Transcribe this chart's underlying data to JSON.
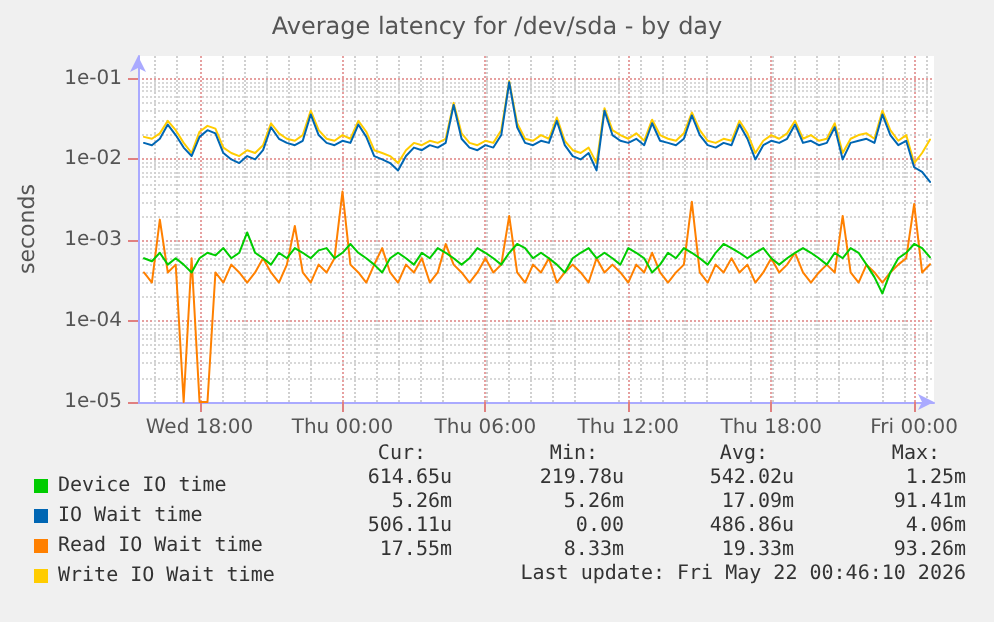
{
  "chart_data": {
    "type": "line",
    "title": "Average latency for /dev/sda - by day",
    "ylabel": "seconds",
    "x": [
      "2026-05-20T15:40",
      "2026-05-20T16:00",
      "2026-05-20T16:20",
      "2026-05-20T16:40",
      "2026-05-20T17:00",
      "2026-05-20T17:20",
      "2026-05-20T17:40",
      "2026-05-20T18:00",
      "2026-05-20T18:20",
      "2026-05-20T18:40",
      "2026-05-20T19:00",
      "2026-05-20T19:20",
      "2026-05-20T19:40",
      "2026-05-20T20:00",
      "2026-05-20T20:20",
      "2026-05-20T20:40",
      "2026-05-20T21:00",
      "2026-05-20T21:20",
      "2026-05-20T21:40",
      "2026-05-20T22:00",
      "2026-05-20T22:20",
      "2026-05-20T22:40",
      "2026-05-20T23:00",
      "2026-05-20T23:20",
      "2026-05-20T23:40",
      "2026-05-21T00:00",
      "2026-05-21T00:20",
      "2026-05-21T00:40",
      "2026-05-21T01:00",
      "2026-05-21T01:20",
      "2026-05-21T01:40",
      "2026-05-21T02:00",
      "2026-05-21T02:20",
      "2026-05-21T02:40",
      "2026-05-21T03:00",
      "2026-05-21T03:20",
      "2026-05-21T03:40",
      "2026-05-21T04:00",
      "2026-05-21T04:20",
      "2026-05-21T04:40",
      "2026-05-21T05:00",
      "2026-05-21T05:20",
      "2026-05-21T05:40",
      "2026-05-21T06:00",
      "2026-05-21T06:20",
      "2026-05-21T06:40",
      "2026-05-21T07:00",
      "2026-05-21T07:20",
      "2026-05-21T07:40",
      "2026-05-21T08:00",
      "2026-05-21T08:20",
      "2026-05-21T08:40",
      "2026-05-21T09:00",
      "2026-05-21T09:20",
      "2026-05-21T09:40",
      "2026-05-21T10:00",
      "2026-05-21T10:20",
      "2026-05-21T10:40",
      "2026-05-21T11:00",
      "2026-05-21T11:20",
      "2026-05-21T11:40",
      "2026-05-21T12:00",
      "2026-05-21T12:20",
      "2026-05-21T12:40",
      "2026-05-21T13:00",
      "2026-05-21T13:20",
      "2026-05-21T13:40",
      "2026-05-21T14:00",
      "2026-05-21T14:20",
      "2026-05-21T14:40",
      "2026-05-21T15:00",
      "2026-05-21T15:20",
      "2026-05-21T15:40",
      "2026-05-21T16:00",
      "2026-05-21T16:20",
      "2026-05-21T16:40",
      "2026-05-21T17:00",
      "2026-05-21T17:20",
      "2026-05-21T17:40",
      "2026-05-21T18:00",
      "2026-05-21T18:20",
      "2026-05-21T18:40",
      "2026-05-21T19:00",
      "2026-05-21T19:20",
      "2026-05-21T19:40",
      "2026-05-21T20:00",
      "2026-05-21T20:20",
      "2026-05-21T20:40",
      "2026-05-21T21:00",
      "2026-05-21T21:20",
      "2026-05-21T21:40",
      "2026-05-21T22:00",
      "2026-05-21T22:20",
      "2026-05-21T22:40",
      "2026-05-21T23:00",
      "2026-05-21T23:20",
      "2026-05-21T23:40",
      "2026-05-22T00:00",
      "2026-05-22T00:20",
      "2026-05-22T00:40"
    ],
    "series": [
      {
        "name": "Device IO time",
        "color": "#00cc00",
        "values": [
          0.0006,
          0.00055,
          0.0007,
          0.0005,
          0.0006,
          0.0005,
          0.0004,
          0.0006,
          0.0007,
          0.00065,
          0.0008,
          0.0006,
          0.0007,
          0.00125,
          0.0007,
          0.0006,
          0.0005,
          0.0007,
          0.0006,
          0.0008,
          0.0007,
          0.0006,
          0.00075,
          0.0008,
          0.0006,
          0.0007,
          0.0009,
          0.0007,
          0.0006,
          0.0005,
          0.0004,
          0.0006,
          0.0007,
          0.0006,
          0.0005,
          0.0007,
          0.0006,
          0.0008,
          0.0007,
          0.0006,
          0.0005,
          0.0006,
          0.0008,
          0.0007,
          0.0006,
          0.0005,
          0.0007,
          0.0009,
          0.0008,
          0.0006,
          0.0007,
          0.0006,
          0.0005,
          0.0004,
          0.0006,
          0.0007,
          0.0008,
          0.0006,
          0.0007,
          0.0006,
          0.0005,
          0.0008,
          0.0007,
          0.0006,
          0.0004,
          0.0005,
          0.0007,
          0.0006,
          0.0008,
          0.0007,
          0.0006,
          0.0005,
          0.0007,
          0.0009,
          0.0008,
          0.0007,
          0.0006,
          0.0007,
          0.0008,
          0.0006,
          0.0005,
          0.0006,
          0.0007,
          0.0008,
          0.0007,
          0.0006,
          0.0005,
          0.0007,
          0.0006,
          0.0008,
          0.0007,
          0.0005,
          0.00035,
          0.00022,
          0.0004,
          0.0006,
          0.0007,
          0.0009,
          0.0008,
          0.000615
        ]
      },
      {
        "name": "IO Wait time",
        "color": "#0066b3",
        "values": [
          0.016,
          0.015,
          0.018,
          0.027,
          0.02,
          0.014,
          0.011,
          0.019,
          0.023,
          0.021,
          0.012,
          0.01,
          0.009,
          0.011,
          0.01,
          0.013,
          0.025,
          0.018,
          0.016,
          0.015,
          0.017,
          0.036,
          0.02,
          0.016,
          0.015,
          0.017,
          0.016,
          0.027,
          0.019,
          0.011,
          0.01,
          0.009,
          0.0073,
          0.011,
          0.014,
          0.013,
          0.015,
          0.014,
          0.016,
          0.047,
          0.018,
          0.014,
          0.013,
          0.015,
          0.014,
          0.02,
          0.09,
          0.025,
          0.016,
          0.015,
          0.017,
          0.016,
          0.03,
          0.015,
          0.011,
          0.01,
          0.012,
          0.0073,
          0.04,
          0.02,
          0.017,
          0.016,
          0.018,
          0.015,
          0.028,
          0.017,
          0.016,
          0.015,
          0.018,
          0.035,
          0.02,
          0.015,
          0.014,
          0.016,
          0.015,
          0.027,
          0.018,
          0.01,
          0.015,
          0.017,
          0.016,
          0.018,
          0.027,
          0.016,
          0.017,
          0.015,
          0.016,
          0.025,
          0.01,
          0.016,
          0.017,
          0.018,
          0.016,
          0.036,
          0.02,
          0.015,
          0.017,
          0.008,
          0.007,
          0.00526
        ]
      },
      {
        "name": "Read IO Wait time",
        "color": "#ff8000",
        "values": [
          0.0004,
          0.0003,
          0.0018,
          0.0004,
          0.0005,
          1e-05,
          0.0006,
          1e-05,
          1e-05,
          0.0004,
          0.0003,
          0.0005,
          0.0004,
          0.0003,
          0.0004,
          0.0006,
          0.0004,
          0.0003,
          0.0005,
          0.0015,
          0.0004,
          0.0003,
          0.0005,
          0.0004,
          0.0006,
          0.004,
          0.0005,
          0.0004,
          0.0003,
          0.0005,
          0.0008,
          0.0004,
          0.0003,
          0.0005,
          0.0004,
          0.0006,
          0.0003,
          0.0004,
          0.0009,
          0.0005,
          0.0004,
          0.0003,
          0.0004,
          0.0006,
          0.0004,
          0.0005,
          0.002,
          0.0004,
          0.0003,
          0.0005,
          0.0004,
          0.0006,
          0.0003,
          0.0004,
          0.0005,
          0.0004,
          0.0003,
          0.0006,
          0.0004,
          0.0005,
          0.0004,
          0.0003,
          0.0005,
          0.0004,
          0.0007,
          0.0004,
          0.0003,
          0.0004,
          0.0005,
          0.003,
          0.0004,
          0.0003,
          0.0005,
          0.0004,
          0.0006,
          0.0004,
          0.0005,
          0.0003,
          0.0004,
          0.0006,
          0.0004,
          0.0005,
          0.0007,
          0.0004,
          0.0003,
          0.0004,
          0.0005,
          0.0004,
          0.002,
          0.0004,
          0.0003,
          0.0005,
          0.0004,
          0.0003,
          0.0004,
          0.0005,
          0.0006,
          0.0028,
          0.0004,
          0.000506
        ]
      },
      {
        "name": "Write IO Wait time",
        "color": "#ffcc00",
        "values": [
          0.019,
          0.018,
          0.021,
          0.03,
          0.023,
          0.016,
          0.012,
          0.022,
          0.026,
          0.024,
          0.014,
          0.012,
          0.011,
          0.013,
          0.012,
          0.015,
          0.028,
          0.021,
          0.018,
          0.017,
          0.02,
          0.04,
          0.023,
          0.018,
          0.017,
          0.02,
          0.018,
          0.03,
          0.022,
          0.013,
          0.012,
          0.011,
          0.009,
          0.013,
          0.016,
          0.015,
          0.017,
          0.016,
          0.018,
          0.05,
          0.021,
          0.016,
          0.015,
          0.017,
          0.016,
          0.023,
          0.093,
          0.028,
          0.018,
          0.017,
          0.02,
          0.018,
          0.033,
          0.017,
          0.013,
          0.012,
          0.014,
          0.009,
          0.043,
          0.023,
          0.02,
          0.018,
          0.021,
          0.017,
          0.031,
          0.02,
          0.018,
          0.017,
          0.021,
          0.038,
          0.023,
          0.017,
          0.016,
          0.018,
          0.017,
          0.03,
          0.021,
          0.012,
          0.017,
          0.02,
          0.018,
          0.021,
          0.03,
          0.018,
          0.02,
          0.017,
          0.018,
          0.028,
          0.012,
          0.018,
          0.02,
          0.021,
          0.018,
          0.04,
          0.023,
          0.017,
          0.02,
          0.009,
          0.012,
          0.0176
        ]
      }
    ],
    "xlim": [
      "2026-05-20T15:25",
      "2026-05-22T00:50"
    ],
    "xticks": [
      {
        "value": "2026-05-20T18:00",
        "label": "Wed 18:00"
      },
      {
        "value": "2026-05-21T00:00",
        "label": "Thu 00:00"
      },
      {
        "value": "2026-05-21T06:00",
        "label": "Thu 06:00"
      },
      {
        "value": "2026-05-21T12:00",
        "label": "Thu 12:00"
      },
      {
        "value": "2026-05-21T18:00",
        "label": "Thu 18:00"
      },
      {
        "value": "2026-05-22T00:00",
        "label": "Fri 00:00"
      }
    ],
    "ylim": [
      1e-05,
      0.19
    ],
    "yticks": [
      {
        "value": 1e-05,
        "label": "1e-05"
      },
      {
        "value": 0.0001,
        "label": "1e-04"
      },
      {
        "value": 0.001,
        "label": "1e-03"
      },
      {
        "value": 0.01,
        "label": "1e-02"
      },
      {
        "value": 0.1,
        "label": "1e-01"
      }
    ],
    "log": "y",
    "grid": true,
    "legend": "bottom",
    "marker": "none",
    "line_style": "solid",
    "annotations": [
      "Cur:",
      "Min:",
      "Avg:",
      "Max:",
      "614.65u",
      "219.78u",
      "542.02u",
      "1.25m",
      "5.26m",
      "5.26m",
      "17.09m",
      "91.41m",
      "506.11u",
      "0.00",
      "486.86u",
      "4.06m",
      "17.55m",
      "8.33m",
      "19.33m",
      "93.26m",
      "Last update: Fri May 22 00:46:10 2026"
    ]
  }
}
